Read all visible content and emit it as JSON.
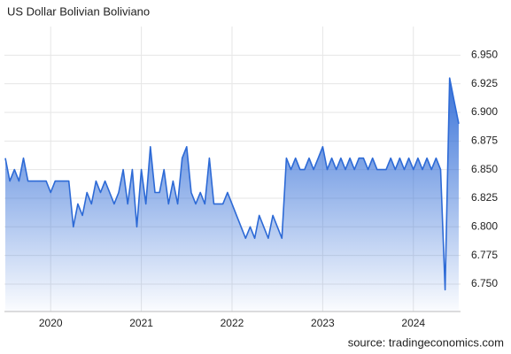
{
  "chart_data": {
    "type": "area",
    "title": "US Dollar Bolivian Boliviano",
    "source": "source: tradingeconomics.com",
    "color": "#2d6ad6",
    "grid": true,
    "x": [
      2019.5,
      2019.55,
      2019.6,
      2019.65,
      2019.7,
      2019.75,
      2019.8,
      2019.85,
      2019.9,
      2019.95,
      2020.0,
      2020.05,
      2020.1,
      2020.15,
      2020.2,
      2020.25,
      2020.3,
      2020.35,
      2020.4,
      2020.45,
      2020.5,
      2020.55,
      2020.6,
      2020.65,
      2020.7,
      2020.75,
      2020.8,
      2020.85,
      2020.9,
      2020.95,
      2021.0,
      2021.05,
      2021.1,
      2021.15,
      2021.2,
      2021.25,
      2021.3,
      2021.35,
      2021.4,
      2021.45,
      2021.5,
      2021.55,
      2021.6,
      2021.65,
      2021.7,
      2021.75,
      2021.8,
      2021.85,
      2021.9,
      2021.95,
      2022.0,
      2022.05,
      2022.1,
      2022.15,
      2022.2,
      2022.25,
      2022.3,
      2022.35,
      2022.4,
      2022.45,
      2022.5,
      2022.55,
      2022.6,
      2022.65,
      2022.7,
      2022.75,
      2022.8,
      2022.85,
      2022.9,
      2022.95,
      2023.0,
      2023.05,
      2023.1,
      2023.15,
      2023.2,
      2023.25,
      2023.3,
      2023.35,
      2023.4,
      2023.45,
      2023.5,
      2023.55,
      2023.6,
      2023.65,
      2023.7,
      2023.75,
      2023.8,
      2023.85,
      2023.9,
      2023.95,
      2024.0,
      2024.05,
      2024.1,
      2024.15,
      2024.2,
      2024.25,
      2024.3,
      2024.35,
      2024.4,
      2024.45,
      2024.5
    ],
    "values": [
      6.86,
      6.84,
      6.85,
      6.84,
      6.86,
      6.84,
      6.84,
      6.84,
      6.84,
      6.84,
      6.83,
      6.84,
      6.84,
      6.84,
      6.84,
      6.8,
      6.82,
      6.81,
      6.83,
      6.82,
      6.84,
      6.83,
      6.84,
      6.83,
      6.82,
      6.83,
      6.85,
      6.82,
      6.85,
      6.8,
      6.85,
      6.82,
      6.87,
      6.83,
      6.83,
      6.85,
      6.82,
      6.84,
      6.82,
      6.86,
      6.87,
      6.83,
      6.82,
      6.83,
      6.82,
      6.86,
      6.82,
      6.82,
      6.82,
      6.83,
      6.82,
      6.81,
      6.8,
      6.79,
      6.8,
      6.79,
      6.81,
      6.8,
      6.79,
      6.81,
      6.8,
      6.79,
      6.86,
      6.85,
      6.86,
      6.85,
      6.85,
      6.86,
      6.85,
      6.86,
      6.87,
      6.85,
      6.86,
      6.85,
      6.86,
      6.85,
      6.86,
      6.85,
      6.86,
      6.86,
      6.85,
      6.86,
      6.85,
      6.85,
      6.85,
      6.86,
      6.85,
      6.86,
      6.85,
      6.86,
      6.85,
      6.86,
      6.85,
      6.86,
      6.85,
      6.86,
      6.85,
      6.745,
      6.93,
      6.91,
      6.89
    ],
    "xlim": [
      2019.49,
      2024.52
    ],
    "xticks": [
      2020,
      2021,
      2022,
      2023,
      2024
    ],
    "ylim": [
      6.726,
      6.975
    ],
    "yticks": [
      {
        "value": 6.75,
        "label": "6.750"
      },
      6.775,
      {
        "value": 6.8,
        "label": "6.800"
      },
      6.825,
      {
        "value": 6.85,
        "label": "6.850"
      },
      6.875,
      {
        "value": 6.9,
        "label": "6.900"
      },
      6.925,
      {
        "value": 6.95,
        "label": "6.950"
      }
    ]
  }
}
